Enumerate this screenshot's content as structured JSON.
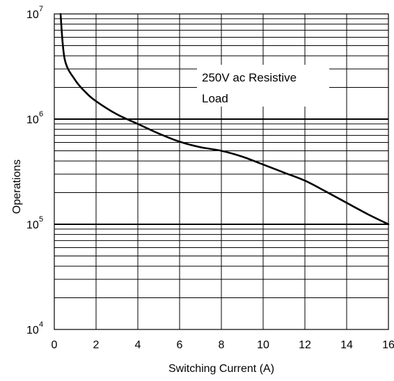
{
  "chart_data": {
    "type": "line",
    "xlabel": "Switching Current (A)",
    "ylabel": "Operations",
    "xlim": [
      0,
      16
    ],
    "ylim": [
      10000,
      10000000
    ],
    "y_scale": "log",
    "grid": true,
    "x_ticks": [
      0,
      2,
      4,
      6,
      8,
      10,
      12,
      14,
      16
    ],
    "x_tick_labels": [
      "0",
      "2",
      "4",
      "6",
      "8",
      "10",
      "12",
      "14",
      "16"
    ],
    "y_ticks": [
      {
        "value": 10000,
        "base": "10",
        "exp": "4"
      },
      {
        "value": 100000,
        "base": "10",
        "exp": "5"
      },
      {
        "value": 1000000,
        "base": "10",
        "exp": "6"
      },
      {
        "value": 10000000,
        "base": "10",
        "exp": "7"
      }
    ],
    "annotation": [
      "250V ac Resistive",
      "Load"
    ],
    "colors": {
      "line": "#000000",
      "grid": "#000000",
      "background": "#ffffff"
    },
    "series": [
      {
        "x": [
          0.3,
          0.5,
          1.0,
          1.5,
          2.0,
          3.0,
          4.0,
          5.0,
          6.0,
          7.0,
          8.0,
          9.0,
          10.0,
          11.0,
          12.0,
          13.0,
          14.0,
          15.0,
          16.0
        ],
        "y": [
          10000000,
          3700000,
          2350000,
          1800000,
          1480000,
          1110000,
          900000,
          730000,
          610000,
          540000,
          500000,
          440000,
          370000,
          310000,
          260000,
          205000,
          160000,
          125000,
          100000
        ]
      }
    ]
  }
}
